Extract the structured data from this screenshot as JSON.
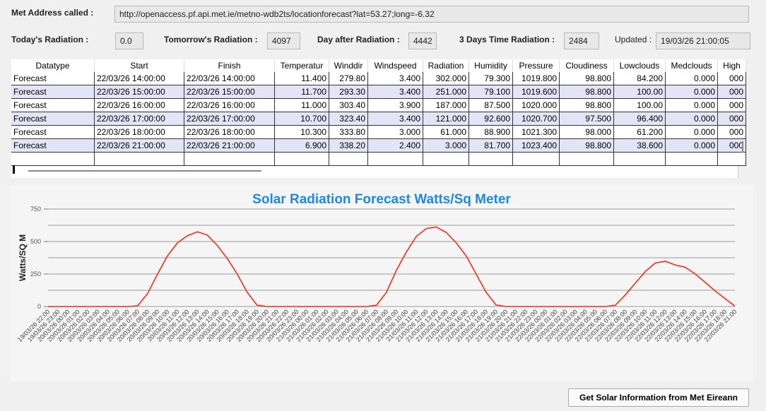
{
  "address": {
    "label": "Met Address called :",
    "value": "http://openaccess.pf.api.met.ie/metno-wdb2ts/locationforecast?lat=53.27;long=-6.32"
  },
  "radiation": [
    {
      "label": "Today's Radiation :",
      "value": "0.0"
    },
    {
      "label": "Tomorrow's Radiation :",
      "value": "4097"
    },
    {
      "label": "Day after Radiation :",
      "value": "4442"
    },
    {
      "label": "3 Days Time Radiation :",
      "value": "2484"
    }
  ],
  "updated": {
    "label": "Updated :",
    "value": "19/03/26 21:00:05"
  },
  "table": {
    "columns": [
      "Datatype",
      "Start",
      "Finish",
      "Temperatur",
      "Winddir",
      "Windspeed",
      "Radiation",
      "Humidity",
      "Pressure",
      "Cloudiness",
      "Lowclouds",
      "Medclouds",
      "High"
    ],
    "rows": [
      [
        "Forecast",
        "22/03/26 14:00:00",
        "22/03/26 14:00:00",
        "11.400",
        "279.80",
        "3.400",
        "302.000",
        "79.300",
        "1019.800",
        "98.800",
        "84.200",
        "0.000",
        "000"
      ],
      [
        "Forecast",
        "22/03/26 15:00:00",
        "22/03/26 15:00:00",
        "11.700",
        "293.30",
        "3.400",
        "251.000",
        "79.100",
        "1019.600",
        "98.800",
        "100.00",
        "0.000",
        "000"
      ],
      [
        "Forecast",
        "22/03/26 16:00:00",
        "22/03/26 16:00:00",
        "11.000",
        "303.40",
        "3.900",
        "187.000",
        "87.500",
        "1020.000",
        "98.800",
        "100.00",
        "0.000",
        "000"
      ],
      [
        "Forecast",
        "22/03/26 17:00:00",
        "22/03/26 17:00:00",
        "10.700",
        "323.40",
        "3.400",
        "121.000",
        "92.600",
        "1020.700",
        "97.500",
        "96.400",
        "0.000",
        "000"
      ],
      [
        "Forecast",
        "22/03/26 18:00:00",
        "22/03/26 18:00:00",
        "10.300",
        "333.80",
        "3.000",
        "61.000",
        "88.900",
        "1021.300",
        "98.000",
        "61.200",
        "0.000",
        "000"
      ],
      [
        "Forecast",
        "22/03/26 21:00:00",
        "22/03/26 21:00:00",
        "6.900",
        "338.20",
        "2.400",
        "3.000",
        "81.700",
        "1023.400",
        "98.800",
        "38.600",
        "0.000",
        "000"
      ]
    ]
  },
  "chart_data": {
    "type": "line",
    "title": "Solar Radiation Forecast Watts/Sq Meter",
    "y_label": "Watts/SQ M",
    "categories": [
      "19/03/26 22:00",
      "19/03/26 23:00",
      "20/03/26 00:00",
      "20/03/26 01:00",
      "20/03/26 02:00",
      "20/03/26 03:00",
      "20/03/26 04:00",
      "20/03/26 05:00",
      "20/03/26 06:00",
      "20/03/26 07:00",
      "20/03/26 08:00",
      "20/03/26 09:00",
      "20/03/26 10:00",
      "20/03/26 11:00",
      "20/03/26 12:00",
      "20/03/26 13:00",
      "20/03/26 14:00",
      "20/03/26 15:00",
      "20/03/26 16:00",
      "20/03/26 17:00",
      "20/03/26 18:00",
      "20/03/26 19:00",
      "20/03/26 20:00",
      "20/03/26 21:00",
      "20/03/26 22:00",
      "20/03/26 23:00",
      "21/03/26 00:00",
      "21/03/26 01:00",
      "21/03/26 02:00",
      "21/03/26 03:00",
      "21/03/26 04:00",
      "21/03/26 05:00",
      "21/03/26 06:00",
      "21/03/26 07:00",
      "21/03/26 08:00",
      "21/03/26 09:00",
      "21/03/26 10:00",
      "21/03/26 11:00",
      "21/03/26 12:00",
      "21/03/26 13:00",
      "21/03/26 14:00",
      "21/03/26 15:00",
      "21/03/26 16:00",
      "21/03/26 17:00",
      "21/03/26 18:00",
      "21/03/26 19:00",
      "21/03/26 20:00",
      "21/03/26 21:00",
      "21/03/26 22:00",
      "21/03/26 23:00",
      "22/03/26 00:00",
      "22/03/26 01:00",
      "22/03/26 02:00",
      "22/03/26 03:00",
      "22/03/26 04:00",
      "22/03/26 05:00",
      "22/03/26 06:00",
      "22/03/26 07:00",
      "22/03/26 08:00",
      "22/03/26 09:00",
      "22/03/26 10:00",
      "22/03/26 11:00",
      "22/03/26 12:00",
      "22/03/26 13:00",
      "22/03/26 14:00",
      "22/03/26 15:00",
      "22/03/26 16:00",
      "22/03/26 17:00",
      "22/03/26 18:00",
      "22/03/26 21:00"
    ],
    "series": [
      {
        "color": "#ff2a1a",
        "values": [
          0,
          0,
          0,
          0,
          0,
          0,
          0,
          0,
          0,
          5,
          100,
          250,
          390,
          490,
          545,
          575,
          550,
          470,
          370,
          250,
          110,
          10,
          0,
          0,
          0,
          0,
          0,
          0,
          0,
          0,
          0,
          0,
          0,
          10,
          110,
          280,
          420,
          540,
          600,
          612,
          570,
          490,
          390,
          250,
          110,
          12,
          0,
          0,
          0,
          0,
          0,
          0,
          0,
          0,
          0,
          0,
          0,
          10,
          90,
          180,
          270,
          335,
          348,
          320,
          302,
          251,
          187,
          121,
          61,
          3
        ]
      }
    ],
    "ylim": [
      0,
      750
    ],
    "yticks": [
      0,
      250,
      500,
      750
    ],
    "yminorticks": [
      125,
      375,
      625
    ],
    "grid": true
  },
  "button": "Get Solar Information from Met Eireann"
}
